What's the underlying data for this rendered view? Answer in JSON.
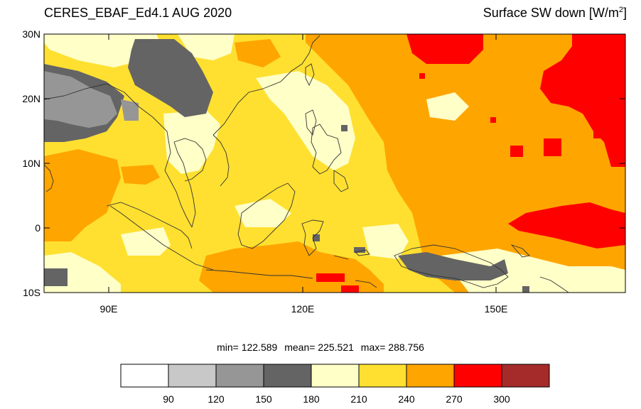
{
  "header": {
    "title": "CERES_EBAF_Ed4.1 AUG 2020",
    "variable": "Surface SW down [W/m",
    "unit_superscript": "2",
    "variable_close": "]"
  },
  "map_data": {
    "lat_ticks": [
      "30N",
      "20N",
      "10N",
      "0",
      "10S"
    ],
    "lat_values": [
      30,
      20,
      10,
      0,
      -10
    ],
    "lon_ticks": [
      "90E",
      "120E",
      "150E"
    ],
    "lon_values": [
      90,
      120,
      150
    ],
    "lon_range": [
      80,
      170
    ],
    "lat_range": [
      -10,
      30
    ]
  },
  "stats": {
    "min": "min= 122.589",
    "mean": "mean= 225.521",
    "max": "max= 288.756"
  },
  "colorbar": {
    "colors": [
      "#ffffff",
      "#c8c8c8",
      "#969696",
      "#646464",
      "#ffffc8",
      "#ffe030",
      "#ffa500",
      "#ff0000",
      "#a52a2a"
    ],
    "labels": [
      "90",
      "120",
      "150",
      "180",
      "210",
      "240",
      "270",
      "300"
    ]
  }
}
